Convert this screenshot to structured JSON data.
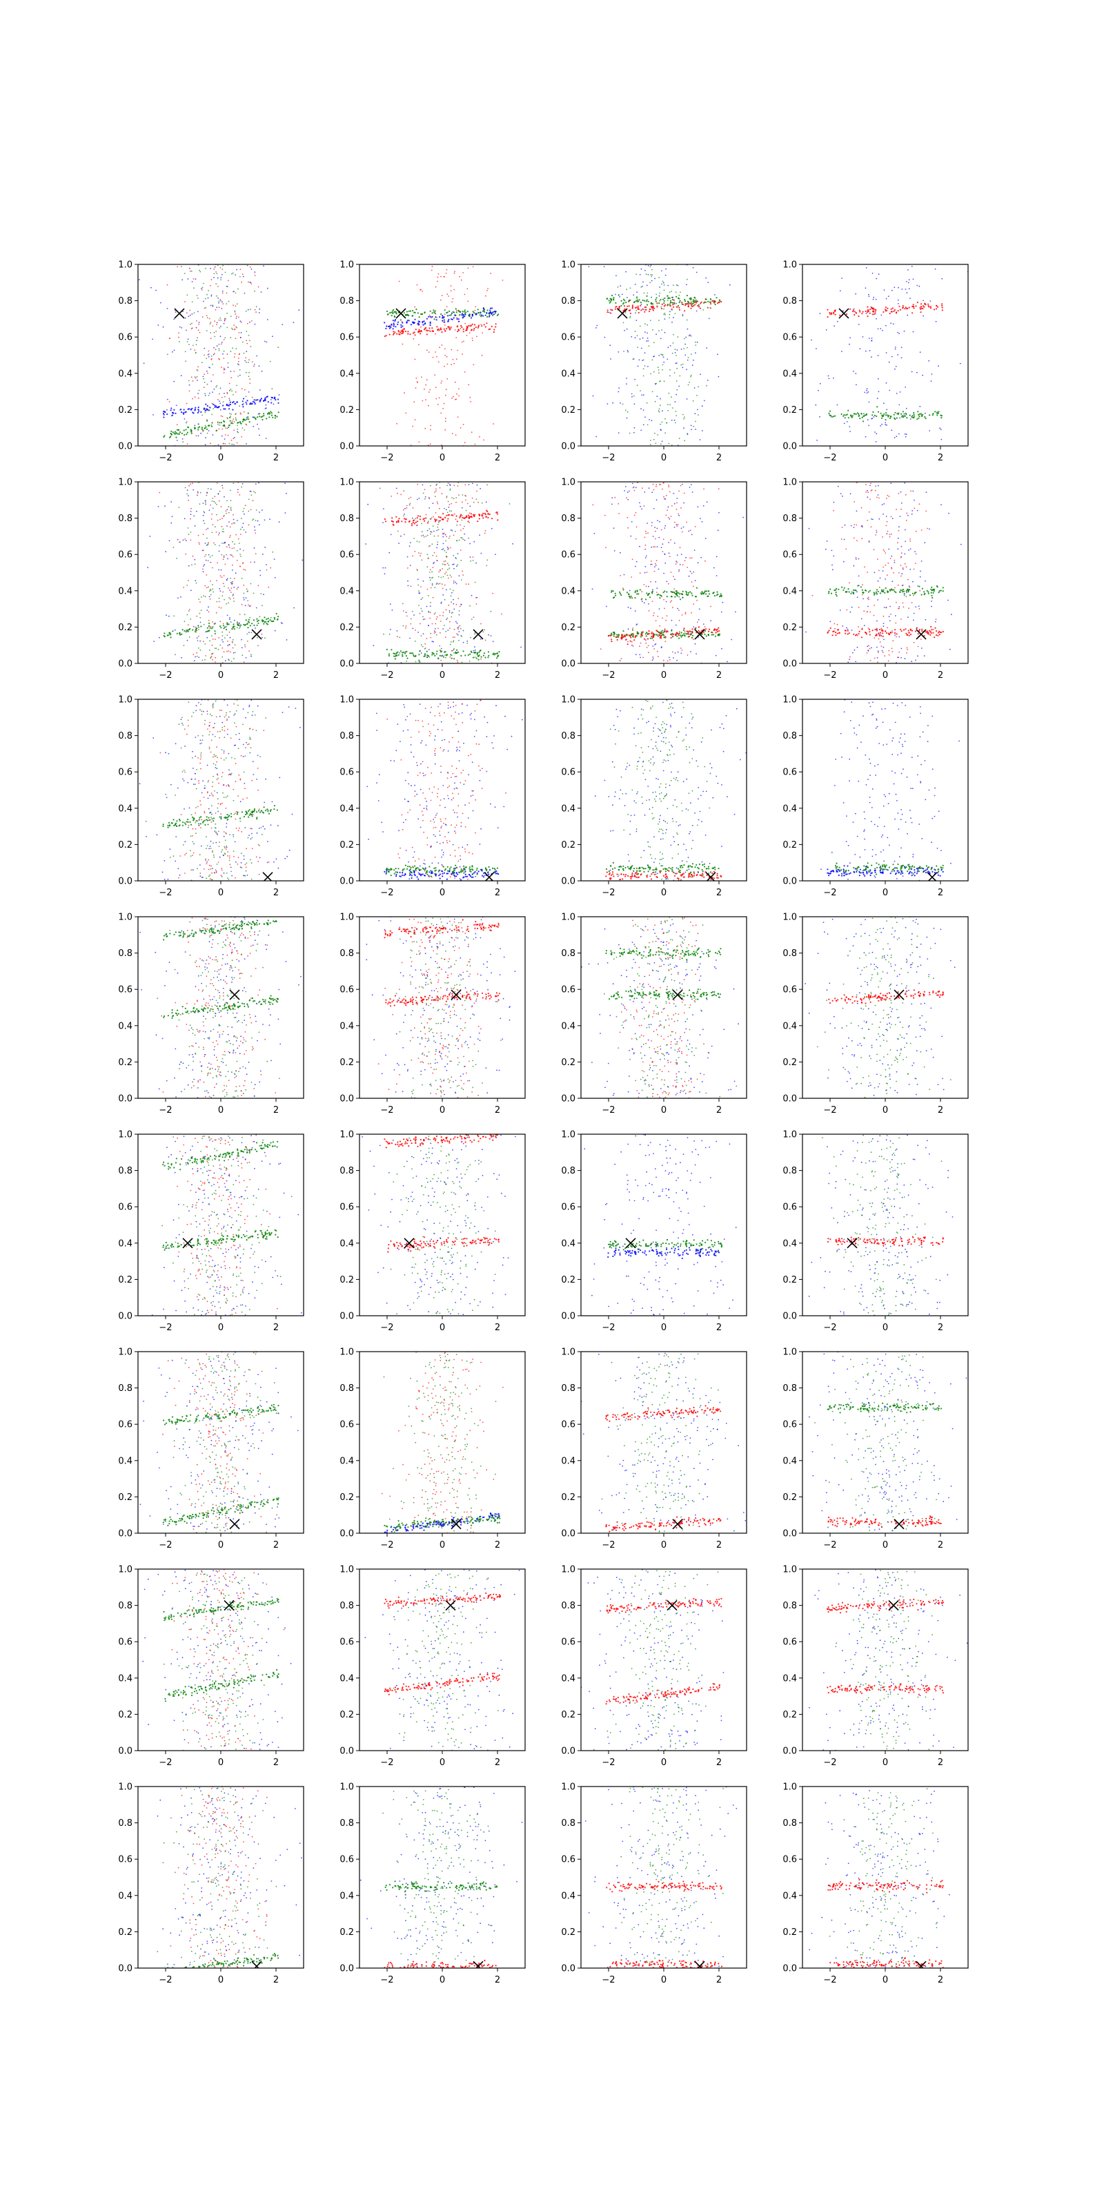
{
  "figure": {
    "rows": 8,
    "cols": 4,
    "colors": {
      "blue": "#0000ff",
      "green": "#008000",
      "red": "#ff0000",
      "marker": "#000000",
      "frame": "#000000"
    }
  },
  "chart_data": {
    "type": "scatter",
    "description": "grid of 8x4 scatter panels; blue, green and red point clouds with a black x marker per row",
    "xlim": [
      -3,
      3
    ],
    "ylim": [
      0,
      1
    ],
    "x_ticks": [
      "−2",
      "0",
      "2"
    ],
    "y_ticks": [
      "0.0",
      "0.2",
      "0.4",
      "0.6",
      "0.8",
      "1.0"
    ],
    "grid": false,
    "legend": "none",
    "markers": [
      {
        "row": 0,
        "x": -1.5,
        "y": 0.73
      },
      {
        "row": 1,
        "x": 1.3,
        "y": 0.16
      },
      {
        "row": 2,
        "x": 1.7,
        "y": 0.02
      },
      {
        "row": 3,
        "x": 0.5,
        "y": 0.57
      },
      {
        "row": 4,
        "x": -1.2,
        "y": 0.4
      },
      {
        "row": 5,
        "x": 0.5,
        "y": 0.05
      },
      {
        "row": 6,
        "x": 0.3,
        "y": 0.8
      },
      {
        "row": 7,
        "x": 1.3,
        "y": 0.01
      }
    ],
    "panels": [
      [
        {
          "background": [
            "green",
            "red",
            "blue"
          ],
          "bands": [
            {
              "color": "green",
              "y": 0.12,
              "slope": 0.03
            },
            {
              "color": "blue",
              "y": 0.22,
              "slope": 0.02
            }
          ]
        },
        {
          "background": [
            "red"
          ],
          "bands": [
            {
              "color": "green",
              "y": 0.73,
              "slope": 0.0
            },
            {
              "color": "blue",
              "y": 0.7,
              "slope": 0.02
            },
            {
              "color": "red",
              "y": 0.64,
              "slope": 0.01
            }
          ]
        },
        {
          "background": [
            "green",
            "blue"
          ],
          "bands": [
            {
              "color": "red",
              "y": 0.77,
              "slope": 0.01
            },
            {
              "color": "green",
              "y": 0.8,
              "slope": 0.0
            }
          ]
        },
        {
          "background": [
            "blue"
          ],
          "bands": [
            {
              "color": "red",
              "y": 0.75,
              "slope": 0.01
            },
            {
              "color": "green",
              "y": 0.17,
              "slope": 0.0
            }
          ]
        }
      ],
      [
        {
          "background": [
            "green",
            "red",
            "blue"
          ],
          "bands": [
            {
              "color": "green",
              "y": 0.2,
              "slope": 0.02
            }
          ]
        },
        {
          "background": [
            "blue",
            "green",
            "red"
          ],
          "bands": [
            {
              "color": "red",
              "y": 0.8,
              "slope": 0.01
            },
            {
              "color": "green",
              "y": 0.05,
              "slope": 0.0
            }
          ]
        },
        {
          "background": [
            "blue",
            "red"
          ],
          "bands": [
            {
              "color": "green",
              "y": 0.16,
              "slope": 0.0
            },
            {
              "color": "green",
              "y": 0.38,
              "slope": 0.0
            },
            {
              "color": "red",
              "y": 0.16,
              "slope": 0.01
            }
          ]
        },
        {
          "background": [
            "blue",
            "red"
          ],
          "bands": [
            {
              "color": "green",
              "y": 0.4,
              "slope": 0.0
            },
            {
              "color": "red",
              "y": 0.17,
              "slope": 0.0
            }
          ]
        }
      ],
      [
        {
          "background": [
            "green",
            "red",
            "blue"
          ],
          "bands": [
            {
              "color": "green",
              "y": 0.35,
              "slope": 0.02
            }
          ]
        },
        {
          "background": [
            "blue",
            "red"
          ],
          "bands": [
            {
              "color": "blue",
              "y": 0.04,
              "slope": 0.0
            },
            {
              "color": "green",
              "y": 0.06,
              "slope": 0.0
            }
          ]
        },
        {
          "background": [
            "blue",
            "green"
          ],
          "bands": [
            {
              "color": "red",
              "y": 0.03,
              "slope": 0.0
            },
            {
              "color": "green",
              "y": 0.07,
              "slope": 0.0
            }
          ]
        },
        {
          "background": [
            "blue"
          ],
          "bands": [
            {
              "color": "green",
              "y": 0.07,
              "slope": 0.0
            },
            {
              "color": "blue",
              "y": 0.05,
              "slope": 0.0
            }
          ]
        }
      ],
      [
        {
          "background": [
            "green",
            "red",
            "blue"
          ],
          "bands": [
            {
              "color": "green",
              "y": 0.5,
              "slope": 0.02
            },
            {
              "color": "green",
              "y": 0.93,
              "slope": 0.02
            }
          ]
        },
        {
          "background": [
            "blue",
            "green",
            "red"
          ],
          "bands": [
            {
              "color": "red",
              "y": 0.93,
              "slope": 0.01
            },
            {
              "color": "red",
              "y": 0.55,
              "slope": 0.01
            }
          ]
        },
        {
          "background": [
            "blue",
            "green",
            "red"
          ],
          "bands": [
            {
              "color": "green",
              "y": 0.57,
              "slope": 0.0
            },
            {
              "color": "green",
              "y": 0.8,
              "slope": 0.0
            }
          ]
        },
        {
          "background": [
            "blue",
            "green"
          ],
          "bands": [
            {
              "color": "red",
              "y": 0.56,
              "slope": 0.01
            }
          ]
        }
      ],
      [
        {
          "background": [
            "green",
            "red",
            "blue"
          ],
          "bands": [
            {
              "color": "green",
              "y": 0.42,
              "slope": 0.02
            },
            {
              "color": "green",
              "y": 0.88,
              "slope": 0.03
            }
          ]
        },
        {
          "background": [
            "blue",
            "green"
          ],
          "bands": [
            {
              "color": "red",
              "y": 0.97,
              "slope": 0.01
            },
            {
              "color": "red",
              "y": 0.4,
              "slope": 0.01
            }
          ]
        },
        {
          "background": [
            "blue"
          ],
          "bands": [
            {
              "color": "green",
              "y": 0.39,
              "slope": 0.0
            },
            {
              "color": "blue",
              "y": 0.35,
              "slope": 0.0
            }
          ]
        },
        {
          "background": [
            "blue",
            "green"
          ],
          "bands": [
            {
              "color": "red",
              "y": 0.41,
              "slope": 0.0
            }
          ]
        }
      ],
      [
        {
          "background": [
            "green",
            "red",
            "blue"
          ],
          "bands": [
            {
              "color": "green",
              "y": 0.12,
              "slope": 0.03
            },
            {
              "color": "green",
              "y": 0.65,
              "slope": 0.02
            }
          ]
        },
        {
          "background": [
            "red",
            "green"
          ],
          "bands": [
            {
              "color": "blue",
              "y": 0.05,
              "slope": 0.02
            },
            {
              "color": "green",
              "y": 0.06,
              "slope": 0.01
            }
          ]
        },
        {
          "background": [
            "blue",
            "green"
          ],
          "bands": [
            {
              "color": "red",
              "y": 0.66,
              "slope": 0.01
            },
            {
              "color": "red",
              "y": 0.05,
              "slope": 0.01
            }
          ]
        },
        {
          "background": [
            "blue",
            "green"
          ],
          "bands": [
            {
              "color": "red",
              "y": 0.06,
              "slope": 0.0
            },
            {
              "color": "green",
              "y": 0.69,
              "slope": 0.0
            }
          ]
        }
      ],
      [
        {
          "background": [
            "green",
            "red",
            "blue"
          ],
          "bands": [
            {
              "color": "green",
              "y": 0.36,
              "slope": 0.03
            },
            {
              "color": "green",
              "y": 0.78,
              "slope": 0.02
            }
          ]
        },
        {
          "background": [
            "blue",
            "green"
          ],
          "bands": [
            {
              "color": "red",
              "y": 0.37,
              "slope": 0.02
            },
            {
              "color": "red",
              "y": 0.83,
              "slope": 0.01
            }
          ]
        },
        {
          "background": [
            "blue",
            "green"
          ],
          "bands": [
            {
              "color": "red",
              "y": 0.31,
              "slope": 0.02
            },
            {
              "color": "red",
              "y": 0.8,
              "slope": 0.01
            }
          ]
        },
        {
          "background": [
            "blue",
            "green"
          ],
          "bands": [
            {
              "color": "red",
              "y": 0.8,
              "slope": 0.01
            },
            {
              "color": "red",
              "y": 0.34,
              "slope": 0.0
            }
          ]
        }
      ],
      [
        {
          "background": [
            "green",
            "red",
            "blue"
          ],
          "bands": [
            {
              "color": "green",
              "y": 0.02,
              "slope": 0.02
            }
          ]
        },
        {
          "background": [
            "blue",
            "green"
          ],
          "bands": [
            {
              "color": "green",
              "y": 0.45,
              "slope": 0.0
            },
            {
              "color": "red",
              "y": 0.01,
              "slope": 0.0
            }
          ]
        },
        {
          "background": [
            "blue",
            "green"
          ],
          "bands": [
            {
              "color": "red",
              "y": 0.45,
              "slope": 0.0
            },
            {
              "color": "red",
              "y": 0.02,
              "slope": 0.0
            }
          ]
        },
        {
          "background": [
            "blue",
            "green"
          ],
          "bands": [
            {
              "color": "red",
              "y": 0.45,
              "slope": 0.0
            },
            {
              "color": "red",
              "y": 0.02,
              "slope": 0.0
            }
          ]
        }
      ]
    ]
  }
}
